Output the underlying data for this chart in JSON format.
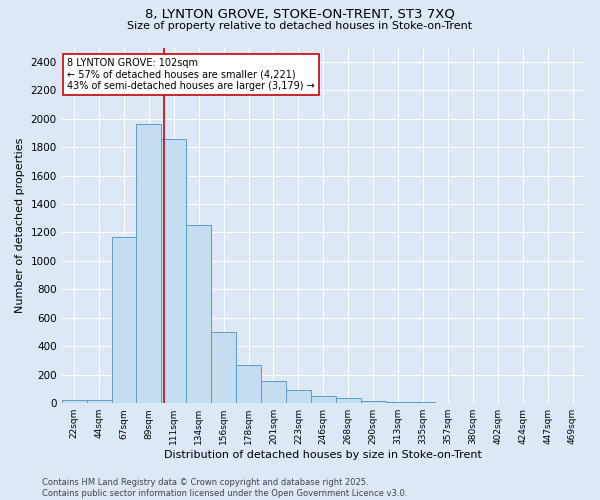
{
  "title_line1": "8, LYNTON GROVE, STOKE-ON-TRENT, ST3 7XQ",
  "title_line2": "Size of property relative to detached houses in Stoke-on-Trent",
  "xlabel": "Distribution of detached houses by size in Stoke-on-Trent",
  "ylabel": "Number of detached properties",
  "categories": [
    "22sqm",
    "44sqm",
    "67sqm",
    "89sqm",
    "111sqm",
    "134sqm",
    "156sqm",
    "178sqm",
    "201sqm",
    "223sqm",
    "246sqm",
    "268sqm",
    "290sqm",
    "313sqm",
    "335sqm",
    "357sqm",
    "380sqm",
    "402sqm",
    "424sqm",
    "447sqm",
    "469sqm"
  ],
  "values": [
    20,
    25,
    1170,
    1960,
    1860,
    1250,
    500,
    270,
    155,
    90,
    50,
    35,
    15,
    10,
    5,
    3,
    2,
    2,
    1,
    1,
    0
  ],
  "bar_color": "#c5ddf0",
  "bar_edge_color": "#5b9dc9",
  "bg_color": "#dce8f5",
  "grid_color": "#ffffff",
  "vline_color": "#cc0000",
  "annotation_box_edge": "#cc0000",
  "annotation_line1": "8 LYNTON GROVE: 102sqm",
  "annotation_line2": "← 57% of detached houses are smaller (4,221)",
  "annotation_line3": "43% of semi-detached houses are larger (3,179) →",
  "ylim": [
    0,
    2500
  ],
  "yticks": [
    0,
    200,
    400,
    600,
    800,
    1000,
    1200,
    1400,
    1600,
    1800,
    2000,
    2200,
    2400
  ],
  "footer_line1": "Contains HM Land Registry data © Crown copyright and database right 2025.",
  "footer_line2": "Contains public sector information licensed under the Open Government Licence v3.0."
}
